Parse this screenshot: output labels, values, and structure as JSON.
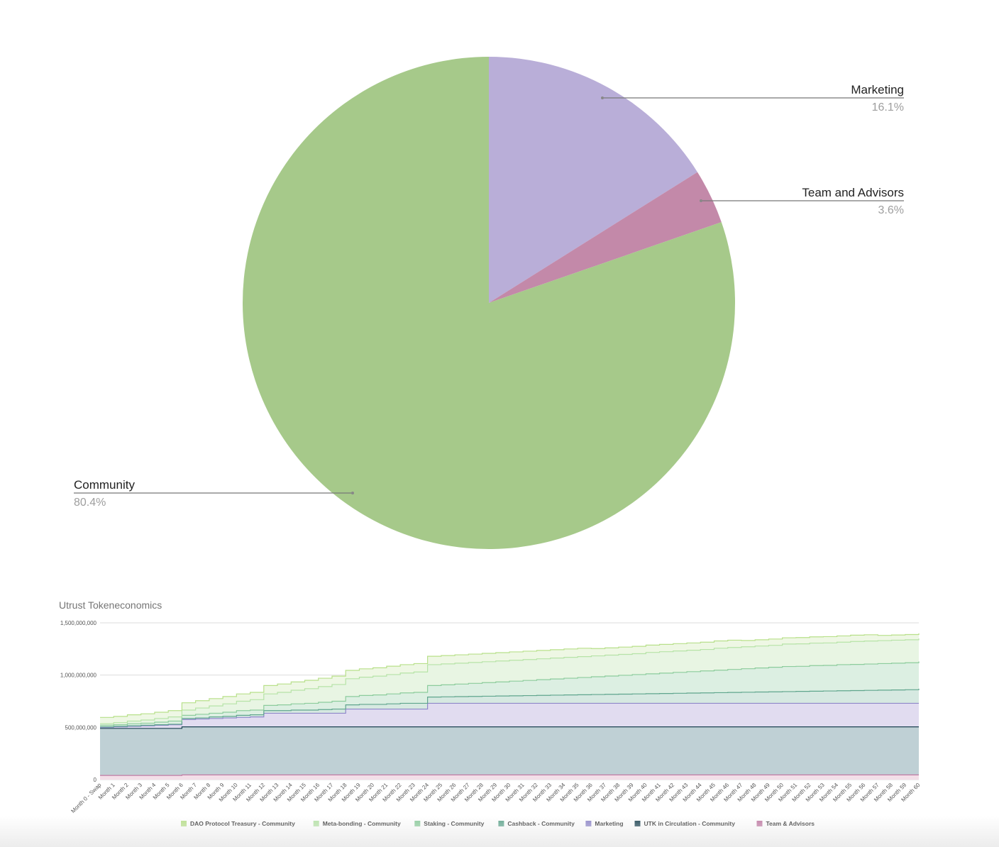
{
  "chart_data": [
    {
      "type": "pie",
      "slices": [
        {
          "label": "Marketing",
          "percent_label": "16.1%",
          "value": 16.1,
          "color": "#b9aed8"
        },
        {
          "label": "Team and Advisors",
          "percent_label": "3.6%",
          "value": 3.6,
          "color": "#c389a9"
        },
        {
          "label": "Community",
          "percent_label": "80.4%",
          "value": 80.4,
          "color": "#a6c98a"
        }
      ]
    },
    {
      "type": "area",
      "title": "Utrust Tokeneconomics",
      "ylim": [
        0,
        1500000000
      ],
      "y_ticks": [
        "0",
        "500,000,000",
        "1,000,000,000",
        "1,500,000,000"
      ],
      "categories": [
        "Month 0 - Swap",
        "Month 1",
        "Month 2",
        "Month 3",
        "Month 4",
        "Month 5",
        "Month 6",
        "Month 7",
        "Month 8",
        "Month 9",
        "Month 10",
        "Month 11",
        "Month 12",
        "Month 13",
        "Month 14",
        "Month 15",
        "Month 16",
        "Month 17",
        "Month 18",
        "Month 19",
        "Month 20",
        "Month 21",
        "Month 22",
        "Month 23",
        "Month 24",
        "Month 25",
        "Month 26",
        "Month 27",
        "Month 28",
        "Month 29",
        "Month 30",
        "Month 31",
        "Month 32",
        "Month 33",
        "Month 34",
        "Month 35",
        "Month 36",
        "Month 37",
        "Month 38",
        "Month 39",
        "Month 40",
        "Month 41",
        "Month 42",
        "Month 43",
        "Month 44",
        "Month 45",
        "Month 46",
        "Month 47",
        "Month 48",
        "Month 49",
        "Month 50",
        "Month 51",
        "Month 52",
        "Month 53",
        "Month 54",
        "Month 55",
        "Month 56",
        "Month 57",
        "Month 58",
        "Month 59",
        "Month 60"
      ],
      "stacked": true,
      "stack_order_bottom_to_top": [
        "Team & Advisors",
        "UTK in Circulation - Community",
        "Marketing",
        "Cashback - Community",
        "Staking - Community",
        "Meta-bonding - Community",
        "DAO Protocol Treasury - Community"
      ],
      "series": [
        {
          "name": "DAO Protocol Treasury - Community",
          "color": "#b8e08a",
          "fill": "#eef7e4",
          "values": [
            60000000,
            60000000,
            60000000,
            60000000,
            60000000,
            60000000,
            70000000,
            70000000,
            70000000,
            70000000,
            70000000,
            70000000,
            80000000,
            80000000,
            80000000,
            80000000,
            80000000,
            80000000,
            80000000,
            80000000,
            80000000,
            80000000,
            80000000,
            80000000,
            80000000,
            80000000,
            80000000,
            80000000,
            80000000,
            80000000,
            80000000,
            80000000,
            80000000,
            80000000,
            80000000,
            80000000,
            70000000,
            70000000,
            70000000,
            70000000,
            70000000,
            70000000,
            70000000,
            70000000,
            70000000,
            70000000,
            70000000,
            60000000,
            60000000,
            60000000,
            60000000,
            60000000,
            60000000,
            60000000,
            60000000,
            60000000,
            60000000,
            50000000,
            50000000,
            50000000,
            50000000
          ]
        },
        {
          "name": "Meta-bonding - Community",
          "color": "#b6e3a7",
          "fill": "#e8f5e3",
          "values": [
            15000000,
            20000000,
            25000000,
            30000000,
            35000000,
            40000000,
            50000000,
            60000000,
            70000000,
            80000000,
            90000000,
            100000000,
            110000000,
            120000000,
            130000000,
            140000000,
            150000000,
            160000000,
            170000000,
            175000000,
            180000000,
            185000000,
            190000000,
            195000000,
            200000000,
            200000000,
            200000000,
            200000000,
            200000000,
            200000000,
            200000000,
            200000000,
            200000000,
            200000000,
            200000000,
            200000000,
            200000000,
            200000000,
            200000000,
            200000000,
            205000000,
            205000000,
            205000000,
            205000000,
            205000000,
            210000000,
            210000000,
            210000000,
            210000000,
            210000000,
            215000000,
            215000000,
            215000000,
            215000000,
            215000000,
            220000000,
            220000000,
            220000000,
            220000000,
            220000000,
            220000000
          ]
        },
        {
          "name": "Staking - Community",
          "color": "#8ccc9c",
          "fill": "#dcefe2",
          "values": [
            15000000,
            15000000,
            20000000,
            20000000,
            25000000,
            30000000,
            30000000,
            35000000,
            35000000,
            40000000,
            45000000,
            45000000,
            50000000,
            55000000,
            60000000,
            65000000,
            70000000,
            75000000,
            80000000,
            85000000,
            90000000,
            95000000,
            100000000,
            105000000,
            110000000,
            115000000,
            120000000,
            125000000,
            130000000,
            135000000,
            140000000,
            145000000,
            150000000,
            155000000,
            160000000,
            165000000,
            170000000,
            175000000,
            180000000,
            185000000,
            190000000,
            195000000,
            200000000,
            205000000,
            210000000,
            215000000,
            220000000,
            225000000,
            230000000,
            235000000,
            240000000,
            240000000,
            245000000,
            245000000,
            250000000,
            250000000,
            252000000,
            254000000,
            256000000,
            258000000,
            260000000
          ]
        },
        {
          "name": "Cashback - Community",
          "color": "#5fa58d",
          "fill": "#d6e9e1",
          "values": [
            5000000,
            5000000,
            5000000,
            5000000,
            5000000,
            5000000,
            10000000,
            10000000,
            15000000,
            15000000,
            20000000,
            20000000,
            25000000,
            25000000,
            30000000,
            30000000,
            35000000,
            40000000,
            40000000,
            45000000,
            45000000,
            50000000,
            55000000,
            55000000,
            60000000,
            62000000,
            64000000,
            66000000,
            68000000,
            70000000,
            72000000,
            74000000,
            76000000,
            78000000,
            80000000,
            82000000,
            84000000,
            86000000,
            88000000,
            90000000,
            92000000,
            94000000,
            96000000,
            98000000,
            100000000,
            102000000,
            104000000,
            106000000,
            108000000,
            110000000,
            112000000,
            114000000,
            116000000,
            118000000,
            120000000,
            122000000,
            124000000,
            126000000,
            128000000,
            130000000,
            140000000
          ]
        },
        {
          "name": "Marketing",
          "color": "#8e86c9",
          "fill": "#e1dcf0",
          "values": [
            10000000,
            15000000,
            20000000,
            25000000,
            30000000,
            35000000,
            70000000,
            75000000,
            80000000,
            85000000,
            90000000,
            95000000,
            130000000,
            130000000,
            130000000,
            130000000,
            130000000,
            130000000,
            170000000,
            170000000,
            170000000,
            170000000,
            170000000,
            170000000,
            225000000,
            225000000,
            225000000,
            225000000,
            225000000,
            225000000,
            225000000,
            225000000,
            225000000,
            225000000,
            225000000,
            225000000,
            225000000,
            225000000,
            225000000,
            225000000,
            225000000,
            225000000,
            225000000,
            225000000,
            225000000,
            225000000,
            225000000,
            225000000,
            225000000,
            225000000,
            225000000,
            225000000,
            225000000,
            225000000,
            225000000,
            225000000,
            225000000,
            225000000,
            225000000,
            225000000,
            225000000
          ]
        },
        {
          "name": "UTK in Circulation - Community",
          "color": "#1c4352",
          "fill": "#bfd0d5",
          "values": [
            450000000,
            450000000,
            450000000,
            450000000,
            450000000,
            450000000,
            460000000,
            460000000,
            460000000,
            460000000,
            460000000,
            460000000,
            460000000,
            460000000,
            460000000,
            460000000,
            460000000,
            460000000,
            460000000,
            460000000,
            460000000,
            460000000,
            460000000,
            460000000,
            460000000,
            460000000,
            460000000,
            460000000,
            460000000,
            460000000,
            460000000,
            460000000,
            460000000,
            460000000,
            460000000,
            460000000,
            460000000,
            460000000,
            460000000,
            460000000,
            460000000,
            460000000,
            460000000,
            460000000,
            460000000,
            460000000,
            460000000,
            460000000,
            460000000,
            460000000,
            460000000,
            460000000,
            460000000,
            460000000,
            460000000,
            460000000,
            460000000,
            460000000,
            460000000,
            460000000,
            460000000
          ]
        },
        {
          "name": "Team & Advisors",
          "color": "#c17ba4",
          "fill": "#f3dfe8",
          "values": [
            40000000,
            40000000,
            40000000,
            40000000,
            40000000,
            40000000,
            45000000,
            45000000,
            45000000,
            45000000,
            45000000,
            45000000,
            45000000,
            45000000,
            45000000,
            45000000,
            45000000,
            45000000,
            45000000,
            45000000,
            45000000,
            45000000,
            45000000,
            45000000,
            45000000,
            45000000,
            45000000,
            45000000,
            45000000,
            45000000,
            45000000,
            45000000,
            45000000,
            45000000,
            45000000,
            45000000,
            45000000,
            45000000,
            45000000,
            45000000,
            45000000,
            45000000,
            45000000,
            45000000,
            45000000,
            45000000,
            45000000,
            45000000,
            45000000,
            45000000,
            45000000,
            45000000,
            45000000,
            45000000,
            45000000,
            45000000,
            45000000,
            45000000,
            45000000,
            45000000,
            45000000
          ]
        }
      ],
      "legend_position": "bottom"
    }
  ]
}
